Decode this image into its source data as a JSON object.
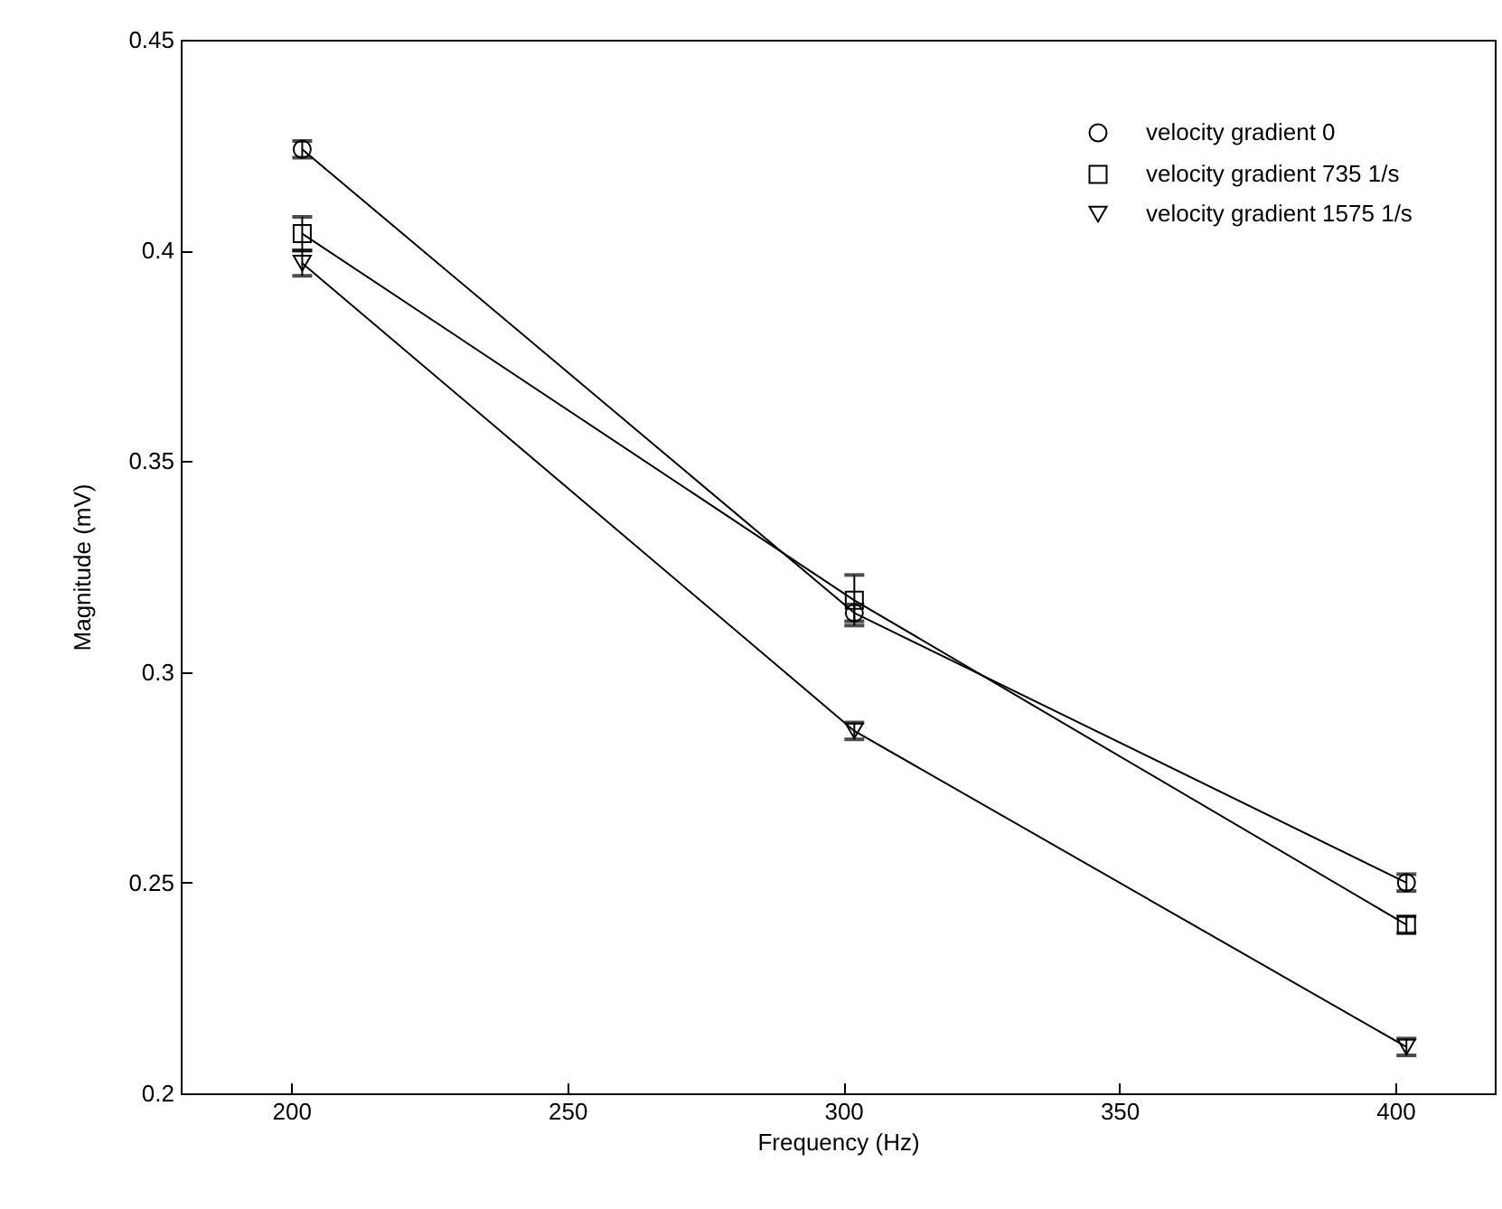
{
  "chart_data": {
    "type": "line",
    "xlabel": "Frequency (Hz)",
    "ylabel": "Magnitude (mV)",
    "x": [
      202,
      302,
      402
    ],
    "xlim": [
      180,
      418
    ],
    "xticks": [
      200,
      250,
      300,
      350,
      400
    ],
    "ylim": [
      0.2,
      0.45
    ],
    "yticks": [
      0.2,
      0.25,
      0.3,
      0.35,
      0.4,
      0.45
    ],
    "grid": false,
    "legend": "top right",
    "line_style": "solid",
    "series": [
      {
        "name": "velocity gradient 0",
        "color": "#000000",
        "marker": "circle",
        "values": [
          0.424,
          0.314,
          0.25
        ],
        "errors": [
          0.002,
          0.002,
          0.002
        ]
      },
      {
        "name": "velocity gradient 735 1/s",
        "color": "#000000",
        "marker": "square",
        "values": [
          0.404,
          0.317,
          0.24
        ],
        "errors": [
          0.004,
          0.006,
          0.002
        ]
      },
      {
        "name": "velocity gradient 1575 1/s",
        "color": "#000000",
        "marker": "triangle",
        "values": [
          0.397,
          0.286,
          0.211
        ],
        "errors": [
          0.003,
          0.002,
          0.002
        ]
      }
    ]
  }
}
